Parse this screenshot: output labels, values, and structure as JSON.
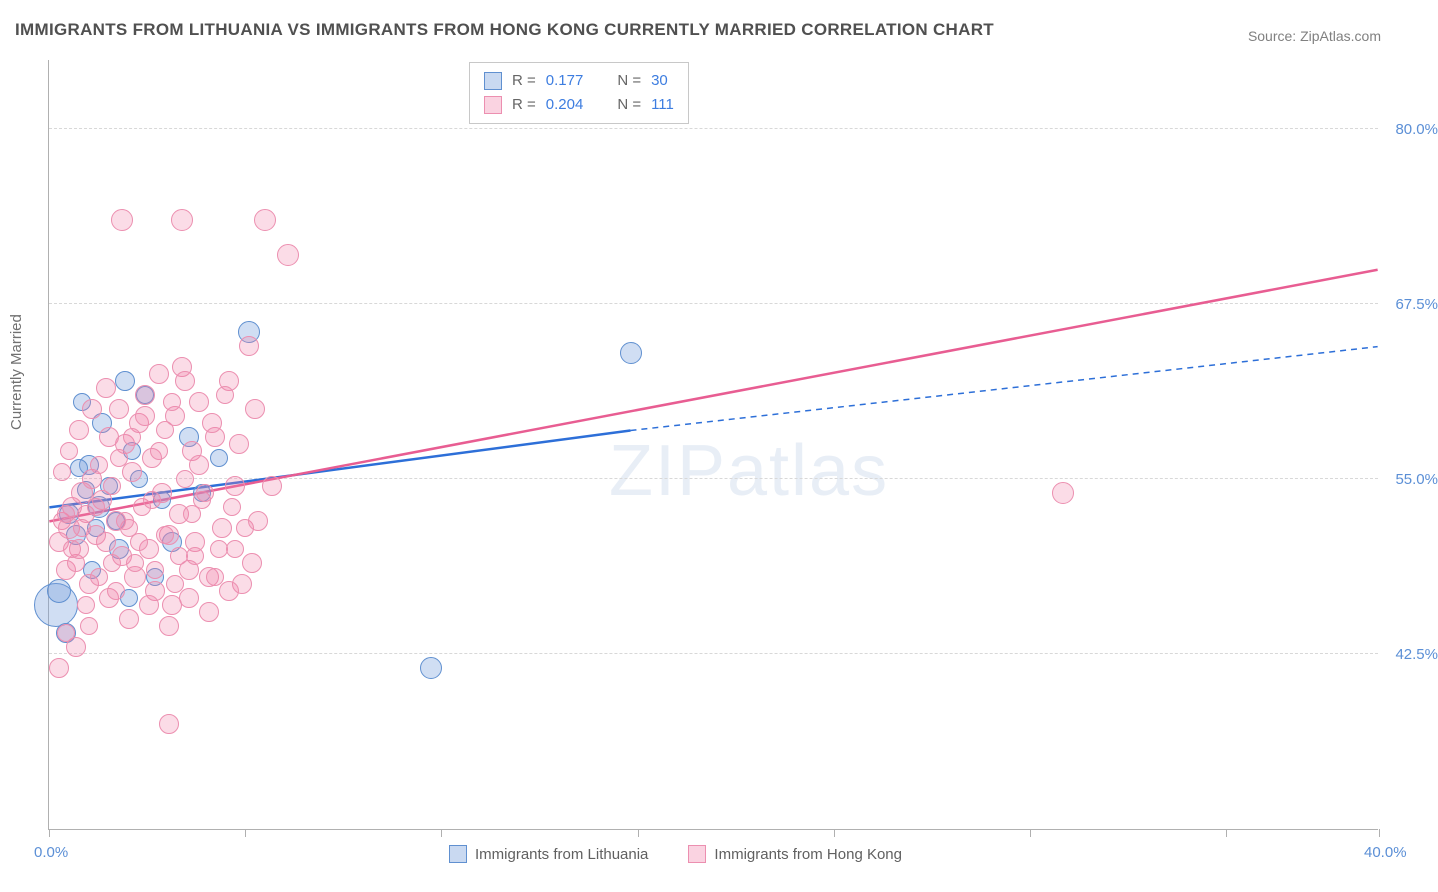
{
  "title": "IMMIGRANTS FROM LITHUANIA VS IMMIGRANTS FROM HONG KONG CURRENTLY MARRIED CORRELATION CHART",
  "source": "Source: ZipAtlas.com",
  "ylabel": "Currently Married",
  "watermark": "ZIPatlas",
  "chart": {
    "type": "scatter",
    "xlim": [
      0,
      40
    ],
    "ylim": [
      30,
      85
    ],
    "x_ticks": [
      0,
      5.9,
      11.8,
      17.7,
      23.6,
      29.5,
      35.4,
      40
    ],
    "x_tick_labels": {
      "0": "0.0%",
      "40": "40.0%"
    },
    "y_grid": [
      42.5,
      55.0,
      67.5,
      80.0
    ],
    "y_tick_labels": [
      "42.5%",
      "55.0%",
      "67.5%",
      "80.0%"
    ],
    "background_color": "#ffffff",
    "grid_color": "#d8d8d8",
    "axis_color": "#b0b0b0"
  },
  "series": [
    {
      "key": "lithuania",
      "label": "Immigrants from Lithuania",
      "color_fill": "rgba(120,160,220,0.35)",
      "color_stroke": "#6090d0",
      "trend_color": "#2d6fd8",
      "R": "0.177",
      "N": "30",
      "trend": {
        "x1": 0,
        "y1": 53.0,
        "x2_solid": 17.5,
        "y2_solid": 58.5,
        "x2": 40,
        "y2": 64.5
      },
      "points": [
        [
          0.2,
          46.0,
          22
        ],
        [
          0.3,
          47.0,
          12
        ],
        [
          0.5,
          44.0,
          10
        ],
        [
          0.6,
          52.5,
          10
        ],
        [
          0.8,
          51.0,
          10
        ],
        [
          1.0,
          60.5,
          9
        ],
        [
          1.2,
          56.0,
          10
        ],
        [
          1.3,
          48.5,
          9
        ],
        [
          1.5,
          53.0,
          11
        ],
        [
          1.6,
          59.0,
          10
        ],
        [
          1.8,
          54.5,
          9
        ],
        [
          2.0,
          52.0,
          9
        ],
        [
          2.1,
          50.0,
          10
        ],
        [
          2.3,
          62.0,
          10
        ],
        [
          2.5,
          57.0,
          9
        ],
        [
          2.7,
          55.0,
          9
        ],
        [
          2.9,
          61.0,
          9
        ],
        [
          3.2,
          48.0,
          9
        ],
        [
          3.4,
          53.5,
          9
        ],
        [
          3.7,
          50.5,
          10
        ],
        [
          4.2,
          58.0,
          10
        ],
        [
          4.6,
          54.0,
          9
        ],
        [
          5.1,
          56.5,
          9
        ],
        [
          6.0,
          65.5,
          11
        ],
        [
          1.1,
          54.2,
          9
        ],
        [
          0.9,
          55.8,
          9
        ],
        [
          2.4,
          46.5,
          9
        ],
        [
          1.4,
          51.5,
          9
        ],
        [
          11.5,
          41.5,
          11
        ],
        [
          17.5,
          64.0,
          11
        ]
      ]
    },
    {
      "key": "hongkong",
      "label": "Immigrants from Hong Kong",
      "color_fill": "rgba(240,130,170,0.28)",
      "color_stroke": "#ec8fb0",
      "trend_color": "#e85d92",
      "R": "0.204",
      "N": "111",
      "trend": {
        "x1": 0,
        "y1": 52.0,
        "x2_solid": 40,
        "y2_solid": 70.0,
        "x2": 40,
        "y2": 70.0
      },
      "points": [
        [
          0.3,
          50.5,
          10
        ],
        [
          0.4,
          52.0,
          9
        ],
        [
          0.5,
          48.5,
          10
        ],
        [
          0.6,
          51.5,
          11
        ],
        [
          0.7,
          53.0,
          10
        ],
        [
          0.8,
          49.0,
          9
        ],
        [
          0.9,
          50.0,
          10
        ],
        [
          1.0,
          54.0,
          11
        ],
        [
          1.1,
          52.5,
          9
        ],
        [
          1.2,
          47.5,
          10
        ],
        [
          1.3,
          55.0,
          10
        ],
        [
          1.4,
          51.0,
          10
        ],
        [
          1.5,
          56.0,
          9
        ],
        [
          1.6,
          53.5,
          10
        ],
        [
          1.7,
          50.5,
          10
        ],
        [
          1.8,
          58.0,
          10
        ],
        [
          1.9,
          54.5,
          9
        ],
        [
          2.0,
          52.0,
          10
        ],
        [
          2.1,
          60.0,
          10
        ],
        [
          2.2,
          49.5,
          10
        ],
        [
          2.3,
          57.5,
          10
        ],
        [
          2.4,
          51.5,
          9
        ],
        [
          2.5,
          55.5,
          10
        ],
        [
          2.6,
          48.0,
          11
        ],
        [
          2.7,
          59.0,
          10
        ],
        [
          2.8,
          53.0,
          9
        ],
        [
          2.9,
          61.0,
          10
        ],
        [
          3.0,
          50.0,
          10
        ],
        [
          3.1,
          56.5,
          10
        ],
        [
          3.2,
          47.0,
          10
        ],
        [
          3.3,
          62.5,
          10
        ],
        [
          3.4,
          54.0,
          10
        ],
        [
          3.5,
          58.5,
          9
        ],
        [
          3.6,
          51.0,
          10
        ],
        [
          3.7,
          46.0,
          10
        ],
        [
          3.8,
          59.5,
          10
        ],
        [
          3.9,
          52.5,
          10
        ],
        [
          4.0,
          63.0,
          10
        ],
        [
          4.1,
          55.0,
          9
        ],
        [
          4.2,
          48.5,
          10
        ],
        [
          4.3,
          57.0,
          10
        ],
        [
          4.4,
          50.5,
          10
        ],
        [
          4.5,
          60.5,
          10
        ],
        [
          4.6,
          53.5,
          9
        ],
        [
          4.8,
          45.5,
          10
        ],
        [
          5.0,
          58.0,
          10
        ],
        [
          5.2,
          51.5,
          10
        ],
        [
          5.4,
          62.0,
          10
        ],
        [
          5.6,
          54.5,
          10
        ],
        [
          5.8,
          47.5,
          10
        ],
        [
          6.0,
          64.5,
          10
        ],
        [
          2.2,
          73.5,
          11
        ],
        [
          4.0,
          73.5,
          11
        ],
        [
          6.5,
          73.5,
          11
        ],
        [
          7.2,
          71.0,
          11
        ],
        [
          3.6,
          37.5,
          10
        ],
        [
          0.3,
          41.5,
          10
        ],
        [
          0.5,
          44.0,
          9
        ],
        [
          0.8,
          43.0,
          10
        ],
        [
          1.2,
          44.5,
          9
        ],
        [
          1.8,
          46.5,
          10
        ],
        [
          2.4,
          45.0,
          10
        ],
        [
          3.0,
          46.0,
          10
        ],
        [
          3.6,
          44.5,
          10
        ],
        [
          4.2,
          46.5,
          10
        ],
        [
          4.8,
          48.0,
          10
        ],
        [
          5.4,
          47.0,
          10
        ],
        [
          0.4,
          55.5,
          9
        ],
        [
          0.6,
          57.0,
          9
        ],
        [
          0.9,
          58.5,
          10
        ],
        [
          1.3,
          60.0,
          10
        ],
        [
          1.7,
          61.5,
          10
        ],
        [
          2.1,
          56.5,
          9
        ],
        [
          2.5,
          58.0,
          9
        ],
        [
          2.9,
          59.5,
          10
        ],
        [
          3.3,
          57.0,
          9
        ],
        [
          3.7,
          60.5,
          9
        ],
        [
          4.1,
          62.0,
          10
        ],
        [
          4.5,
          56.0,
          10
        ],
        [
          4.9,
          59.0,
          10
        ],
        [
          5.3,
          61.0,
          9
        ],
        [
          5.7,
          57.5,
          10
        ],
        [
          6.2,
          60.0,
          10
        ],
        [
          0.5,
          52.5,
          9
        ],
        [
          0.7,
          50.0,
          9
        ],
        [
          1.0,
          51.5,
          9
        ],
        [
          1.4,
          53.0,
          9
        ],
        [
          1.9,
          49.0,
          9
        ],
        [
          2.3,
          52.0,
          9
        ],
        [
          2.7,
          50.5,
          9
        ],
        [
          3.1,
          53.5,
          9
        ],
        [
          3.5,
          51.0,
          9
        ],
        [
          3.9,
          49.5,
          9
        ],
        [
          4.3,
          52.5,
          9
        ],
        [
          4.7,
          54.0,
          9
        ],
        [
          5.1,
          50.0,
          9
        ],
        [
          5.5,
          53.0,
          9
        ],
        [
          5.9,
          51.5,
          9
        ],
        [
          6.3,
          52.0,
          10
        ],
        [
          6.7,
          54.5,
          10
        ],
        [
          1.1,
          46.0,
          9
        ],
        [
          1.5,
          48.0,
          9
        ],
        [
          2.0,
          47.0,
          9
        ],
        [
          2.6,
          49.0,
          9
        ],
        [
          3.2,
          48.5,
          9
        ],
        [
          3.8,
          47.5,
          9
        ],
        [
          4.4,
          49.5,
          9
        ],
        [
          5.0,
          48.0,
          9
        ],
        [
          5.6,
          50.0,
          9
        ],
        [
          6.1,
          49.0,
          10
        ],
        [
          30.5,
          54.0,
          11
        ]
      ]
    }
  ],
  "stats_box": {
    "rows": [
      {
        "swatch": "b",
        "R_label": "R = ",
        "R": "0.177",
        "N_label": "N = ",
        "N": "30"
      },
      {
        "swatch": "p",
        "R_label": "R = ",
        "R": "0.204",
        "N_label": "N = ",
        "N": "111"
      }
    ]
  }
}
